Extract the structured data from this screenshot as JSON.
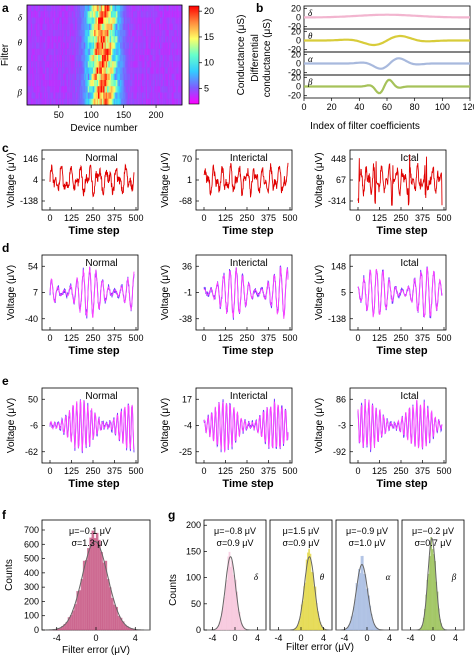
{
  "panels": {
    "a": {
      "letter": "a"
    },
    "b": {
      "letter": "b"
    },
    "c": {
      "letter": "c"
    },
    "d": {
      "letter": "d"
    },
    "e": {
      "letter": "e"
    },
    "f": {
      "letter": "f"
    },
    "g": {
      "letter": "g"
    }
  },
  "chart_data": [
    {
      "id": "a",
      "type": "heatmap",
      "xlabel": "Device number",
      "ylabel": "Filter",
      "xticks": [
        50,
        100,
        150,
        200
      ],
      "xlim": [
        1,
        240
      ],
      "rows": [
        "δ",
        "θ",
        "α",
        "β"
      ],
      "colorbar_label": "Conductance (μS)",
      "colorbar_ticks": [
        5,
        10,
        15,
        20
      ],
      "colorbar_range": [
        2,
        21
      ],
      "colors": [
        "#ff00ff",
        "#7f5cff",
        "#33ccff",
        "#66ffcc",
        "#ffff66",
        "#ff8a3d",
        "#ff0000"
      ]
    },
    {
      "id": "b",
      "type": "line",
      "xlabel": "Index of filter coefficients",
      "ylabel": "Differential conductance (μS)",
      "xticks": [
        0,
        20,
        40,
        60,
        80,
        100,
        120
      ],
      "xlim": [
        0,
        120
      ],
      "yticks": [
        -20,
        0,
        20
      ],
      "ylim": [
        -25,
        25
      ],
      "series": [
        {
          "name": "δ",
          "color": "#f2b5cf"
        },
        {
          "name": "θ",
          "color": "#d8cc3a"
        },
        {
          "name": "α",
          "color": "#a8b9dd"
        },
        {
          "name": "β",
          "color": "#a6c25a"
        }
      ]
    },
    {
      "id": "c",
      "type": "line",
      "xlabel": "Time step",
      "ylabel": "Voltage (μV)",
      "xticks": [
        0,
        125,
        250,
        375,
        500
      ],
      "xlim": [
        0,
        500
      ],
      "subplots": [
        {
          "title": "Normal",
          "yticks": [
            146,
            4,
            -138
          ],
          "color": "#e00000"
        },
        {
          "title": "Interictal",
          "yticks": [
            70,
            1,
            -68
          ],
          "color": "#e00000"
        },
        {
          "title": "Ictal",
          "yticks": [
            448,
            67,
            -314
          ],
          "color": "#e00000"
        }
      ]
    },
    {
      "id": "d",
      "type": "line",
      "xlabel": "Time step",
      "ylabel": "Voltage (μV)",
      "xticks": [
        0,
        125,
        250,
        375,
        500
      ],
      "xlim": [
        0,
        500
      ],
      "subplots": [
        {
          "title": "Normal",
          "yticks": [
            54,
            7,
            -40
          ]
        },
        {
          "title": "Interictal",
          "yticks": [
            36,
            -1,
            -38
          ]
        },
        {
          "title": "Ictal",
          "yticks": [
            148,
            5,
            -138
          ]
        }
      ],
      "colors": [
        "#ff40ff",
        "#6a3cff"
      ]
    },
    {
      "id": "e",
      "type": "line",
      "xlabel": "Time step",
      "ylabel": "Voltage (μV)",
      "xticks": [
        0,
        125,
        250,
        375,
        500
      ],
      "xlim": [
        0,
        500
      ],
      "subplots": [
        {
          "title": "Normal",
          "yticks": [
            50,
            -6,
            -62
          ]
        },
        {
          "title": "Interictal",
          "yticks": [
            17,
            -4,
            -25
          ]
        },
        {
          "title": "Ictal",
          "yticks": [
            86,
            -3,
            -92
          ]
        }
      ],
      "colors": [
        "#ff40ff",
        "#6a3cff"
      ]
    },
    {
      "id": "f",
      "type": "bar",
      "xlabel": "Filter error (μV)",
      "ylabel": "Counts",
      "xticks": [
        -4,
        0,
        4
      ],
      "xlim": [
        -5.5,
        5.5
      ],
      "yticks": [
        0,
        100,
        200,
        300,
        400,
        500,
        600,
        700
      ],
      "ylim": [
        0,
        770
      ],
      "annotation": [
        "μ=−0.1 μV",
        "σ=1.3 μV"
      ],
      "mu": -0.1,
      "sigma": 1.3,
      "peak": 620,
      "color": "#c85a86"
    },
    {
      "id": "g",
      "type": "bar",
      "xlabel": "Filter error (μV)",
      "ylabel": "Counts",
      "xticks": [
        -4,
        0,
        4
      ],
      "xlim": [
        -5.5,
        5.5
      ],
      "yticks": [
        0,
        50,
        100,
        150,
        200
      ],
      "ylim": [
        0,
        210
      ],
      "subplots": [
        {
          "label": "δ",
          "mu": -0.8,
          "sigma": 0.9,
          "peak": 140,
          "annotation": [
            "μ=−0.8 μV",
            "σ=0.9 μV"
          ],
          "color": "#f7c6dc"
        },
        {
          "label": "θ",
          "mu": 1.5,
          "sigma": 0.9,
          "peak": 140,
          "annotation": [
            "μ=1.5 μV",
            "σ=0.9 μV"
          ],
          "color": "#e4d94a"
        },
        {
          "label": "α",
          "mu": -0.9,
          "sigma": 1.0,
          "peak": 125,
          "annotation": [
            "μ=−0.9 μV",
            "σ=1.0 μV"
          ],
          "color": "#a9bde2"
        },
        {
          "label": "β",
          "mu": -0.2,
          "sigma": 0.7,
          "peak": 175,
          "annotation": [
            "μ=−0.2 μV",
            "σ=0.7 μV"
          ],
          "color": "#9cc35a"
        }
      ]
    }
  ]
}
